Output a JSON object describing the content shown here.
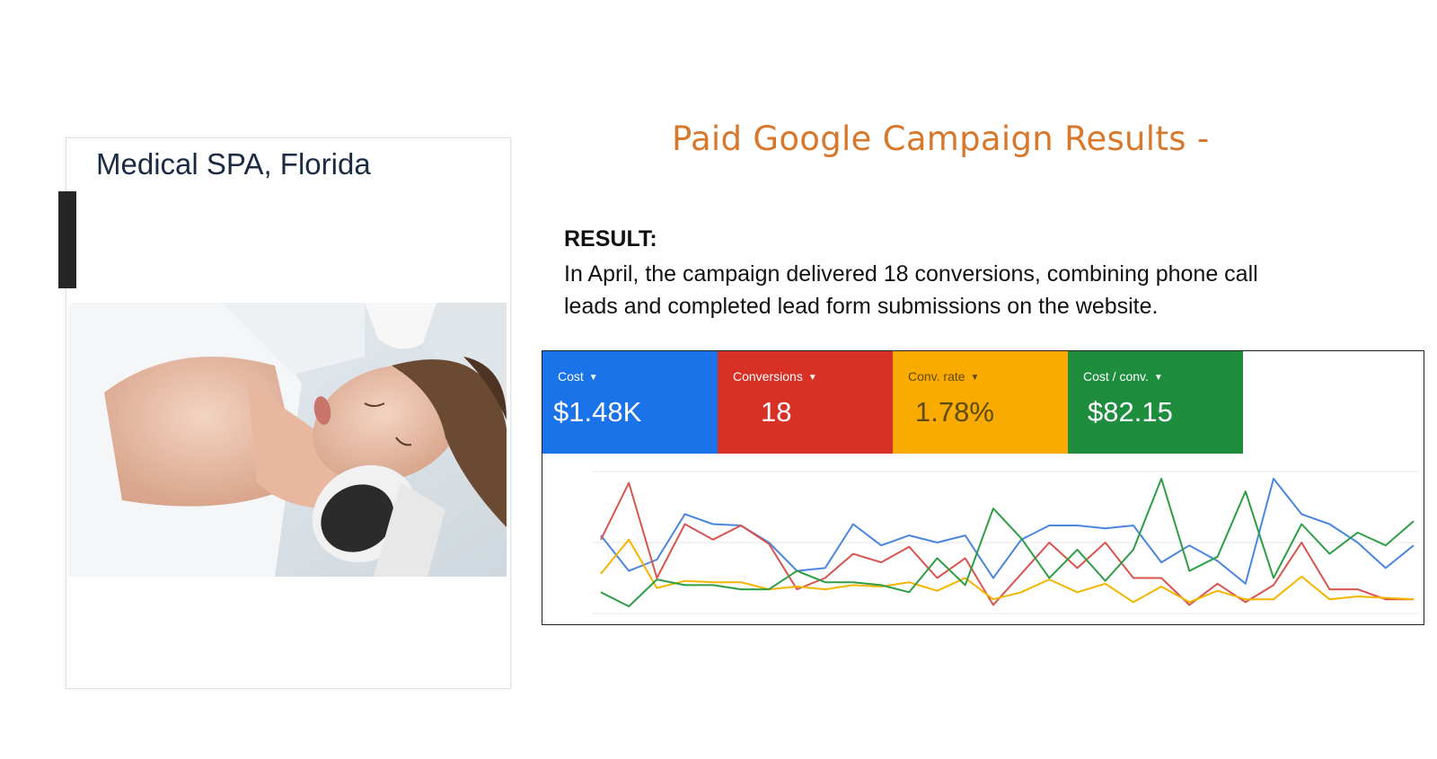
{
  "card": {
    "title": "Medical SPA, Florida"
  },
  "heading": "Paid Google Campaign Results -",
  "result": {
    "label": "RESULT:",
    "text": "In April, the campaign delivered 18 conversions, combining phone call leads and completed lead form submissions on the website."
  },
  "metrics": [
    {
      "label": "Cost",
      "value": "$1.48K",
      "color": "#1a73e8"
    },
    {
      "label": "Conversions",
      "value": "18",
      "color": "#d93025"
    },
    {
      "label": "Conv. rate",
      "value": "1.78%",
      "color": "#f9ab00"
    },
    {
      "label": "Cost / conv.",
      "value": "$82.15",
      "color": "#1e8e3e"
    }
  ],
  "chart_data": {
    "type": "line",
    "x": [
      1,
      2,
      3,
      4,
      5,
      6,
      7,
      8,
      9,
      10,
      11,
      12,
      13,
      14,
      15,
      16,
      17,
      18,
      19,
      20,
      21,
      22,
      23,
      24,
      25,
      26,
      27,
      28,
      29,
      30
    ],
    "ylim": [
      0,
      100
    ],
    "series": [
      {
        "color": "#4a86e0",
        "values": [
          55,
          30,
          38,
          70,
          63,
          62,
          50,
          30,
          32,
          63,
          48,
          55,
          50,
          55,
          25,
          52,
          62,
          62,
          60,
          62,
          36,
          48,
          37,
          21,
          95,
          70,
          63,
          50,
          32,
          48
        ]
      },
      {
        "color": "#d9534f",
        "values": [
          52,
          92,
          25,
          63,
          52,
          62,
          49,
          17,
          25,
          42,
          36,
          47,
          25,
          39,
          6,
          28,
          50,
          32,
          50,
          25,
          25,
          6,
          21,
          8,
          20,
          50,
          17,
          17,
          10,
          10
        ]
      },
      {
        "color": "#f4b400",
        "values": [
          28,
          52,
          18,
          23,
          22,
          22,
          17,
          19,
          17,
          20,
          19,
          22,
          16,
          25,
          10,
          15,
          24,
          15,
          21,
          8,
          19,
          8,
          16,
          10,
          10,
          26,
          10,
          12,
          11,
          10
        ]
      },
      {
        "color": "#2e9e46",
        "values": [
          15,
          5,
          24,
          20,
          20,
          17,
          17,
          30,
          22,
          22,
          20,
          15,
          39,
          20,
          74,
          53,
          25,
          45,
          23,
          45,
          95,
          30,
          40,
          86,
          25,
          63,
          42,
          57,
          48,
          65
        ]
      }
    ]
  }
}
